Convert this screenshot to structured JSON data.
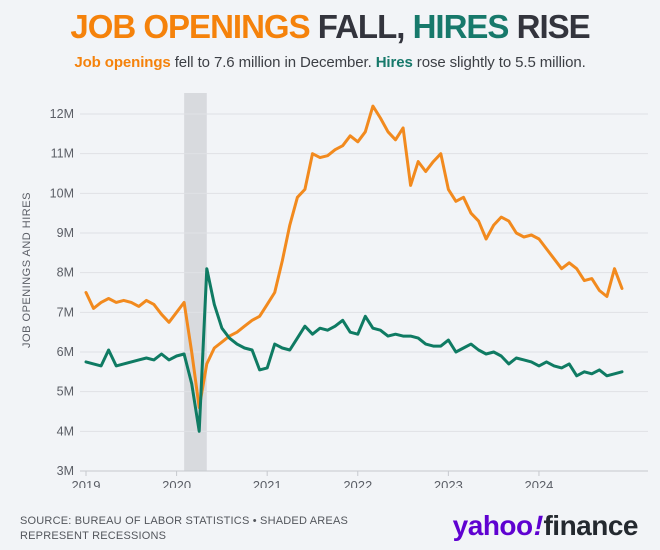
{
  "colors": {
    "background": "#f2f4f7",
    "orange": "#f28a1e",
    "teal": "#0f7b63",
    "title_dark": "#33343d",
    "title_orange": "#f5820b",
    "title_teal": "#17796b",
    "gridline": "#dfe1e5",
    "axis_line": "#c6c9ce",
    "axis_text": "#5b5e66",
    "recession_band": "#d8dade",
    "logo_purple": "#5f01d1",
    "logo_dark": "#24292f"
  },
  "header": {
    "title_part1": "JOB OPENINGS ",
    "title_part2": "FALL, ",
    "title_part3": "HIRES ",
    "title_part4": "RISE",
    "subtitle_part1": "Job openings",
    "subtitle_part2": " fell to 7.6 million in December. ",
    "subtitle_part3": "Hires",
    "subtitle_part4": " rose slightly to 5.5 million."
  },
  "footer": {
    "source_line1": "SOURCE: BUREAU OF LABOR STATISTICS • SHADED AREAS",
    "source_line2": "REPRESENT RECESSIONS",
    "logo_yahoo": "yahoo",
    "logo_excl": "!",
    "logo_finance": "finance"
  },
  "chart_data": {
    "type": "line",
    "ylabel": "JOB OPENINGS AND HIRES",
    "ylim": [
      3,
      12.5
    ],
    "yticks": [
      3,
      4,
      5,
      6,
      7,
      8,
      9,
      10,
      11,
      12
    ],
    "ytick_labels": [
      "3M",
      "4M",
      "5M",
      "6M",
      "7M",
      "8M",
      "9M",
      "10M",
      "11M",
      "12M"
    ],
    "xtick_labels": [
      "2019",
      "2020",
      "2021",
      "2022",
      "2023",
      "2024"
    ],
    "grid": true,
    "legend_position": "none",
    "units": "millions",
    "recession_band": [
      "2020-02",
      "2020-05"
    ],
    "x": [
      "2019-01",
      "2019-02",
      "2019-03",
      "2019-04",
      "2019-05",
      "2019-06",
      "2019-07",
      "2019-08",
      "2019-09",
      "2019-10",
      "2019-11",
      "2019-12",
      "2020-01",
      "2020-02",
      "2020-03",
      "2020-04",
      "2020-05",
      "2020-06",
      "2020-07",
      "2020-08",
      "2020-09",
      "2020-10",
      "2020-11",
      "2020-12",
      "2021-01",
      "2021-02",
      "2021-03",
      "2021-04",
      "2021-05",
      "2021-06",
      "2021-07",
      "2021-08",
      "2021-09",
      "2021-10",
      "2021-11",
      "2021-12",
      "2022-01",
      "2022-02",
      "2022-03",
      "2022-04",
      "2022-05",
      "2022-06",
      "2022-07",
      "2022-08",
      "2022-09",
      "2022-10",
      "2022-11",
      "2022-12",
      "2023-01",
      "2023-02",
      "2023-03",
      "2023-04",
      "2023-05",
      "2023-06",
      "2023-07",
      "2023-08",
      "2023-09",
      "2023-10",
      "2023-11",
      "2023-12",
      "2024-01",
      "2024-02",
      "2024-03",
      "2024-04",
      "2024-05",
      "2024-06",
      "2024-07",
      "2024-08",
      "2024-09",
      "2024-10",
      "2024-11",
      "2024-12"
    ],
    "series": [
      {
        "name": "Job openings",
        "color": "#f28a1e",
        "values": [
          7.5,
          7.1,
          7.25,
          7.35,
          7.25,
          7.3,
          7.25,
          7.15,
          7.3,
          7.2,
          6.95,
          6.75,
          7.0,
          7.25,
          6.0,
          4.6,
          5.7,
          6.1,
          6.25,
          6.4,
          6.5,
          6.65,
          6.8,
          6.9,
          7.2,
          7.5,
          8.3,
          9.2,
          9.9,
          10.1,
          11.0,
          10.9,
          10.95,
          11.1,
          11.2,
          11.45,
          11.3,
          11.55,
          12.2,
          11.9,
          11.55,
          11.35,
          11.65,
          10.2,
          10.8,
          10.55,
          10.8,
          11.0,
          10.1,
          9.8,
          9.9,
          9.5,
          9.3,
          8.85,
          9.2,
          9.4,
          9.3,
          9.0,
          8.9,
          8.95,
          8.85,
          8.6,
          8.35,
          8.1,
          8.25,
          8.1,
          7.8,
          7.85,
          7.55,
          7.4,
          8.1,
          7.6
        ]
      },
      {
        "name": "Hires",
        "color": "#0f7b63",
        "values": [
          5.75,
          5.7,
          5.65,
          6.05,
          5.65,
          5.7,
          5.75,
          5.8,
          5.85,
          5.8,
          5.95,
          5.8,
          5.9,
          5.95,
          5.2,
          4.0,
          8.1,
          7.2,
          6.6,
          6.35,
          6.2,
          6.1,
          6.05,
          5.55,
          5.6,
          6.2,
          6.1,
          6.05,
          6.35,
          6.65,
          6.45,
          6.6,
          6.55,
          6.65,
          6.8,
          6.5,
          6.45,
          6.9,
          6.6,
          6.55,
          6.4,
          6.45,
          6.4,
          6.4,
          6.35,
          6.2,
          6.15,
          6.15,
          6.3,
          6.0,
          6.1,
          6.2,
          6.05,
          5.95,
          6.0,
          5.9,
          5.7,
          5.85,
          5.8,
          5.75,
          5.65,
          5.75,
          5.65,
          5.6,
          5.7,
          5.4,
          5.5,
          5.45,
          5.55,
          5.4,
          5.45,
          5.5
        ]
      }
    ]
  }
}
